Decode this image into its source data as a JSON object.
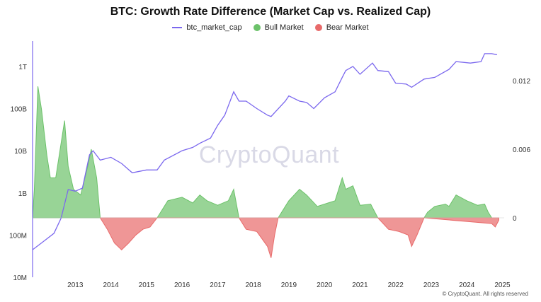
{
  "chart_data": {
    "type": "line",
    "title": "BTC: Growth Rate Difference (Market Cap vs. Realized Cap)",
    "legend": [
      {
        "label": "btc_market_cap",
        "color": "#7b68ee",
        "shape": "line"
      },
      {
        "label": "Bull Market",
        "color": "#6cc26a",
        "shape": "dot"
      },
      {
        "label": "Bear Market",
        "color": "#e86a6a",
        "shape": "dot"
      }
    ],
    "x_ticks": [
      "2013",
      "2014",
      "2015",
      "2016",
      "2017",
      "2018",
      "2019",
      "2020",
      "2021",
      "2022",
      "2023",
      "2024",
      "2025"
    ],
    "y_left_ticks": [
      "1T",
      "100B",
      "10B",
      "1B",
      "100M",
      "10M"
    ],
    "y_right_ticks": [
      "0.012",
      "0.006",
      "0"
    ],
    "y_left_scale": "log",
    "y_left_range": [
      10000000,
      4000000000000
    ],
    "y_right_range": [
      -0.0045,
      0.0145
    ],
    "x_range": [
      2012.3,
      2025.55
    ],
    "grid": false,
    "legend_position": "top-center",
    "series": [
      {
        "name": "btc_market_cap",
        "axis": "left",
        "color": "#7b68ee",
        "x": [
          2012.3,
          2012.6,
          2012.9,
          2013.1,
          2013.3,
          2013.5,
          2013.7,
          2013.9,
          2014.0,
          2014.2,
          2014.5,
          2014.8,
          2015.1,
          2015.5,
          2015.8,
          2016.0,
          2016.5,
          2016.8,
          2017.0,
          2017.3,
          2017.5,
          2017.7,
          2017.95,
          2018.1,
          2018.3,
          2018.6,
          2018.9,
          2019.0,
          2019.4,
          2019.5,
          2019.8,
          2020.0,
          2020.2,
          2020.5,
          2020.8,
          2021.0,
          2021.1,
          2021.3,
          2021.5,
          2021.85,
          2022.0,
          2022.3,
          2022.5,
          2022.8,
          2022.95,
          2023.3,
          2023.6,
          2024.0,
          2024.2,
          2024.6,
          2024.9,
          2025.0,
          2025.2,
          2025.35
        ],
        "values": [
          45000000,
          70000000,
          110000000,
          250000000,
          1200000000,
          1100000000,
          1300000000,
          8000000000,
          10000000000,
          6000000000,
          7000000000,
          5000000000,
          3000000000,
          3500000000,
          3500000000,
          6000000000,
          10000000000,
          12000000000,
          15000000000,
          20000000000,
          40000000000,
          70000000000,
          250000000000,
          150000000000,
          150000000000,
          100000000000,
          70000000000,
          65000000000,
          150000000000,
          200000000000,
          150000000000,
          140000000000,
          100000000000,
          180000000000,
          250000000000,
          550000000000,
          800000000000,
          1000000000000,
          650000000000,
          1200000000000,
          800000000000,
          750000000000,
          400000000000,
          380000000000,
          320000000000,
          500000000000,
          550000000000,
          850000000000,
          1300000000000,
          1200000000000,
          1300000000000,
          2000000000000,
          2000000000000,
          1900000000000
        ]
      },
      {
        "name": "Bull Market",
        "axis": "right",
        "color": "#6cc26a",
        "x": [
          2012.3,
          2012.35,
          2012.45,
          2012.55,
          2012.7,
          2012.8,
          2012.95,
          2013.2,
          2013.3,
          2013.45,
          2013.65,
          2013.85,
          2013.95,
          2014.1,
          2014.2,
          2015.8,
          2015.9,
          2016.1,
          2016.5,
          2016.8,
          2017.0,
          2017.2,
          2017.5,
          2017.8,
          2017.95,
          2018.1,
          2019.2,
          2019.4,
          2019.5,
          2019.8,
          2020.0,
          2020.15,
          2020.3,
          2020.6,
          2020.8,
          2021.0,
          2021.1,
          2021.3,
          2021.5,
          2021.8,
          2022.0,
          2023.3,
          2023.4,
          2023.6,
          2023.9,
          2024.0,
          2024.2,
          2024.5,
          2024.8,
          2025.0,
          2025.1,
          2025.2
        ],
        "values": [
          0,
          0.0025,
          0.0115,
          0.0095,
          0.0055,
          0.0035,
          0.0035,
          0.0085,
          0.0045,
          0.0025,
          0.002,
          0.0045,
          0.006,
          0.0035,
          0,
          0,
          0.0005,
          0.0015,
          0.0018,
          0.0013,
          0.002,
          0.0015,
          0.0011,
          0.0015,
          0.0025,
          0,
          0,
          0.001,
          0.0015,
          0.0025,
          0.002,
          0.0015,
          0.001,
          0.0013,
          0.0015,
          0.0035,
          0.0025,
          0.0028,
          0.0011,
          0.0012,
          0,
          0,
          0.0005,
          0.001,
          0.0012,
          0.001,
          0.002,
          0.0015,
          0.0011,
          0.0012,
          0.0005,
          0
        ]
      },
      {
        "name": "Bear Market",
        "axis": "right",
        "color": "#e86a6a",
        "x": [
          2014.2,
          2014.4,
          2014.6,
          2014.8,
          2015.0,
          2015.2,
          2015.4,
          2015.6,
          2015.8,
          2018.1,
          2018.3,
          2018.6,
          2018.9,
          2019.0,
          2019.1,
          2019.2,
          2022.0,
          2022.3,
          2022.6,
          2022.85,
          2022.95,
          2023.1,
          2023.3,
          2025.2,
          2025.3,
          2025.4
        ],
        "values": [
          0,
          -0.001,
          -0.0022,
          -0.0028,
          -0.0022,
          -0.0015,
          -0.001,
          -0.0008,
          0,
          0,
          -0.001,
          -0.0012,
          -0.0025,
          -0.0035,
          -0.0015,
          0,
          0,
          -0.001,
          -0.0012,
          -0.0015,
          -0.0025,
          -0.0015,
          0,
          -0.0005,
          -0.0008,
          -0.0002
        ]
      }
    ],
    "watermark": "CryptoQuant",
    "footer": "© CryptoQuant. All rights reserved"
  }
}
